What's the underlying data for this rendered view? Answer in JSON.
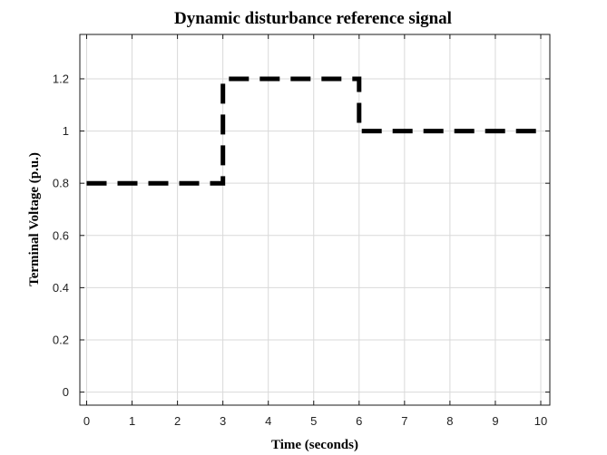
{
  "chart_data": {
    "type": "line",
    "title": "Dynamic disturbance reference signal",
    "xlabel": "Time (seconds)",
    "ylabel": "Terminal Voltage (p.u.)",
    "xlim": [
      -0.15,
      10.2
    ],
    "ylim": [
      -0.05,
      1.37
    ],
    "xticks": [
      0,
      1,
      2,
      3,
      4,
      5,
      6,
      7,
      8,
      9,
      10
    ],
    "xtick_labels": [
      "0",
      "1",
      "2",
      "3",
      "4",
      "5",
      "6",
      "7",
      "8",
      "9",
      "10"
    ],
    "yticks": [
      0,
      0.2,
      0.4,
      0.6,
      0.8,
      1.0,
      1.2
    ],
    "ytick_labels": [
      "0",
      "0.2",
      "0.4",
      "0.6",
      "0.8",
      "1",
      "1.2"
    ],
    "grid": true,
    "series": [
      {
        "style": "dashed",
        "color": "#000000",
        "x": [
          0,
          3,
          3,
          6,
          6,
          10
        ],
        "y": [
          0.8,
          0.8,
          1.2,
          1.2,
          1.0,
          1.0
        ]
      }
    ]
  }
}
